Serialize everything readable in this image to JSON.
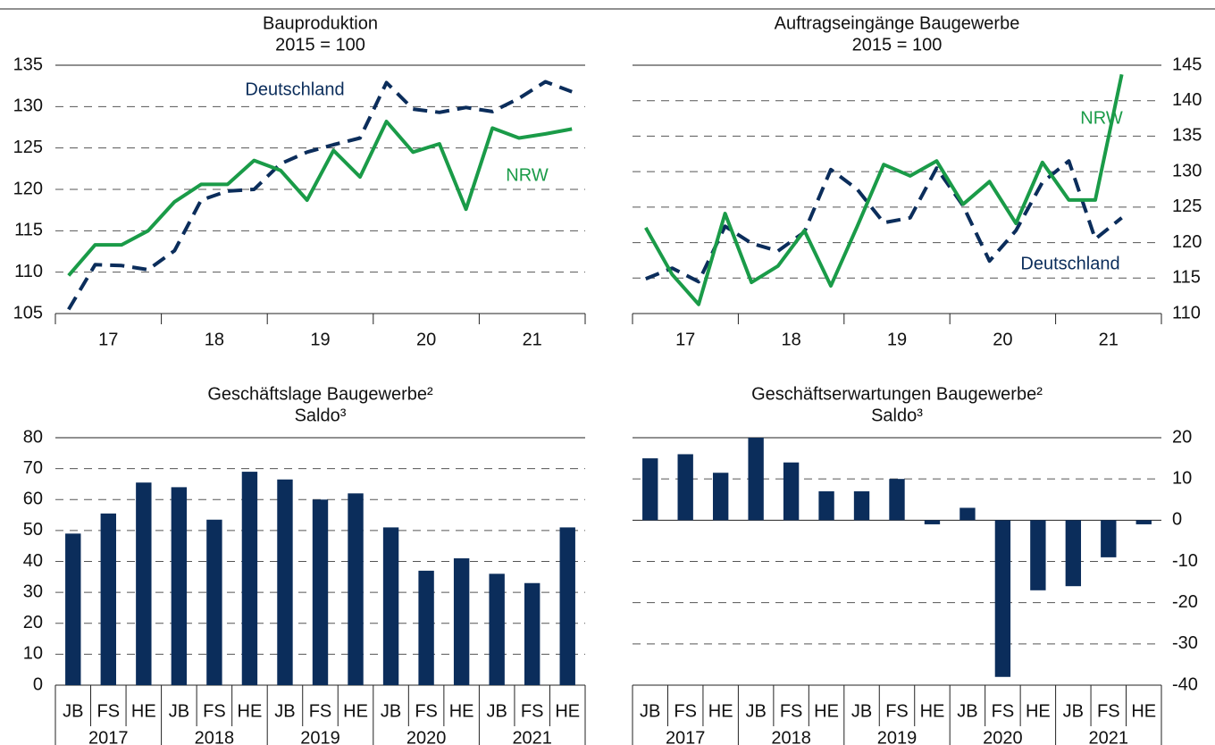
{
  "chart_data": [
    {
      "type": "line",
      "title": "Bauproduktion",
      "subtitle": "2015 = 100",
      "y_axis_side": "left",
      "groups": [
        "17",
        "18",
        "19",
        "20",
        "21"
      ],
      "ylim": [
        105,
        135
      ],
      "yticks": [
        105,
        110,
        115,
        120,
        125,
        130,
        135
      ],
      "series": [
        {
          "name": "Deutschland",
          "color": "#0b2d5b",
          "dashed": true,
          "values": [
            105.5,
            110.9,
            110.8,
            110.3,
            112.6,
            118.7,
            119.8,
            120,
            123.1,
            124.5,
            125.4,
            126.2,
            132.9,
            129.7,
            129.3,
            129.9,
            129.4,
            131,
            133,
            131.8
          ]
        },
        {
          "name": "NRW",
          "color": "#1a9b48",
          "dashed": false,
          "values": [
            109.6,
            113.3,
            113.3,
            115,
            118.5,
            120.6,
            120.6,
            123.5,
            122.3,
            118.7,
            124.7,
            121.5,
            128.2,
            124.5,
            125.5,
            117.6,
            127.4,
            126.2,
            126.7,
            127.3
          ]
        }
      ]
    },
    {
      "type": "line",
      "title": "Auftragseingänge Baugewerbe",
      "subtitle": "2015 = 100",
      "y_axis_side": "right",
      "groups": [
        "17",
        "18",
        "19",
        "20",
        "21"
      ],
      "ylim": [
        110,
        145
      ],
      "yticks": [
        110,
        115,
        120,
        125,
        130,
        135,
        140,
        145
      ],
      "series": [
        {
          "name": "Deutschland",
          "color": "#0b2d5b",
          "dashed": true,
          "values": [
            114.9,
            116.4,
            114.5,
            122.3,
            119.9,
            118.8,
            121.5,
            130.3,
            127.5,
            122.8,
            123.5,
            130.5,
            125.2,
            117.4,
            121.7,
            128.5,
            131.5,
            120.5,
            123.5,
            null
          ]
        },
        {
          "name": "NRW",
          "color": "#1a9b48",
          "dashed": false,
          "values": [
            122.1,
            115.5,
            111.3,
            124.1,
            114.4,
            116.7,
            121.7,
            113.9,
            122.3,
            131,
            129.4,
            131.5,
            125.4,
            128.6,
            122.7,
            131.3,
            126,
            126,
            143.7,
            null
          ]
        }
      ]
    },
    {
      "type": "bar",
      "title": "Geschäftslage Baugewerbe²",
      "subtitle": "Saldo³",
      "y_axis_side": "left",
      "groups": [
        "2017",
        "2018",
        "2019",
        "2020",
        "2021"
      ],
      "categories": [
        "JB",
        "FS",
        "HE",
        "JB",
        "FS",
        "HE",
        "JB",
        "FS",
        "HE",
        "JB",
        "FS",
        "HE",
        "JB",
        "FS",
        "HE"
      ],
      "values": [
        49,
        55.5,
        65.5,
        64,
        53.5,
        69,
        66.5,
        60,
        62,
        51,
        37,
        41,
        36,
        33,
        51
      ],
      "color": "#0b2d5b",
      "ylim": [
        0,
        80
      ],
      "yticks": [
        0,
        10,
        20,
        30,
        40,
        50,
        60,
        70,
        80
      ]
    },
    {
      "type": "bar",
      "title": "Geschäftserwartungen Baugewerbe²",
      "subtitle": "Saldo³",
      "y_axis_side": "right",
      "groups": [
        "2017",
        "2018",
        "2019",
        "2020",
        "2021"
      ],
      "categories": [
        "JB",
        "FS",
        "HE",
        "JB",
        "FS",
        "HE",
        "JB",
        "FS",
        "HE",
        "JB",
        "FS",
        "HE",
        "JB",
        "FS",
        "HE"
      ],
      "values": [
        15,
        16,
        11.5,
        20,
        14,
        7,
        7,
        10,
        -1,
        3,
        -38,
        -17,
        -16,
        -9,
        -1
      ],
      "color": "#0b2d5b",
      "ylim": [
        -40,
        20
      ],
      "yticks": [
        -40,
        -30,
        -20,
        -10,
        0,
        10,
        20
      ]
    }
  ]
}
